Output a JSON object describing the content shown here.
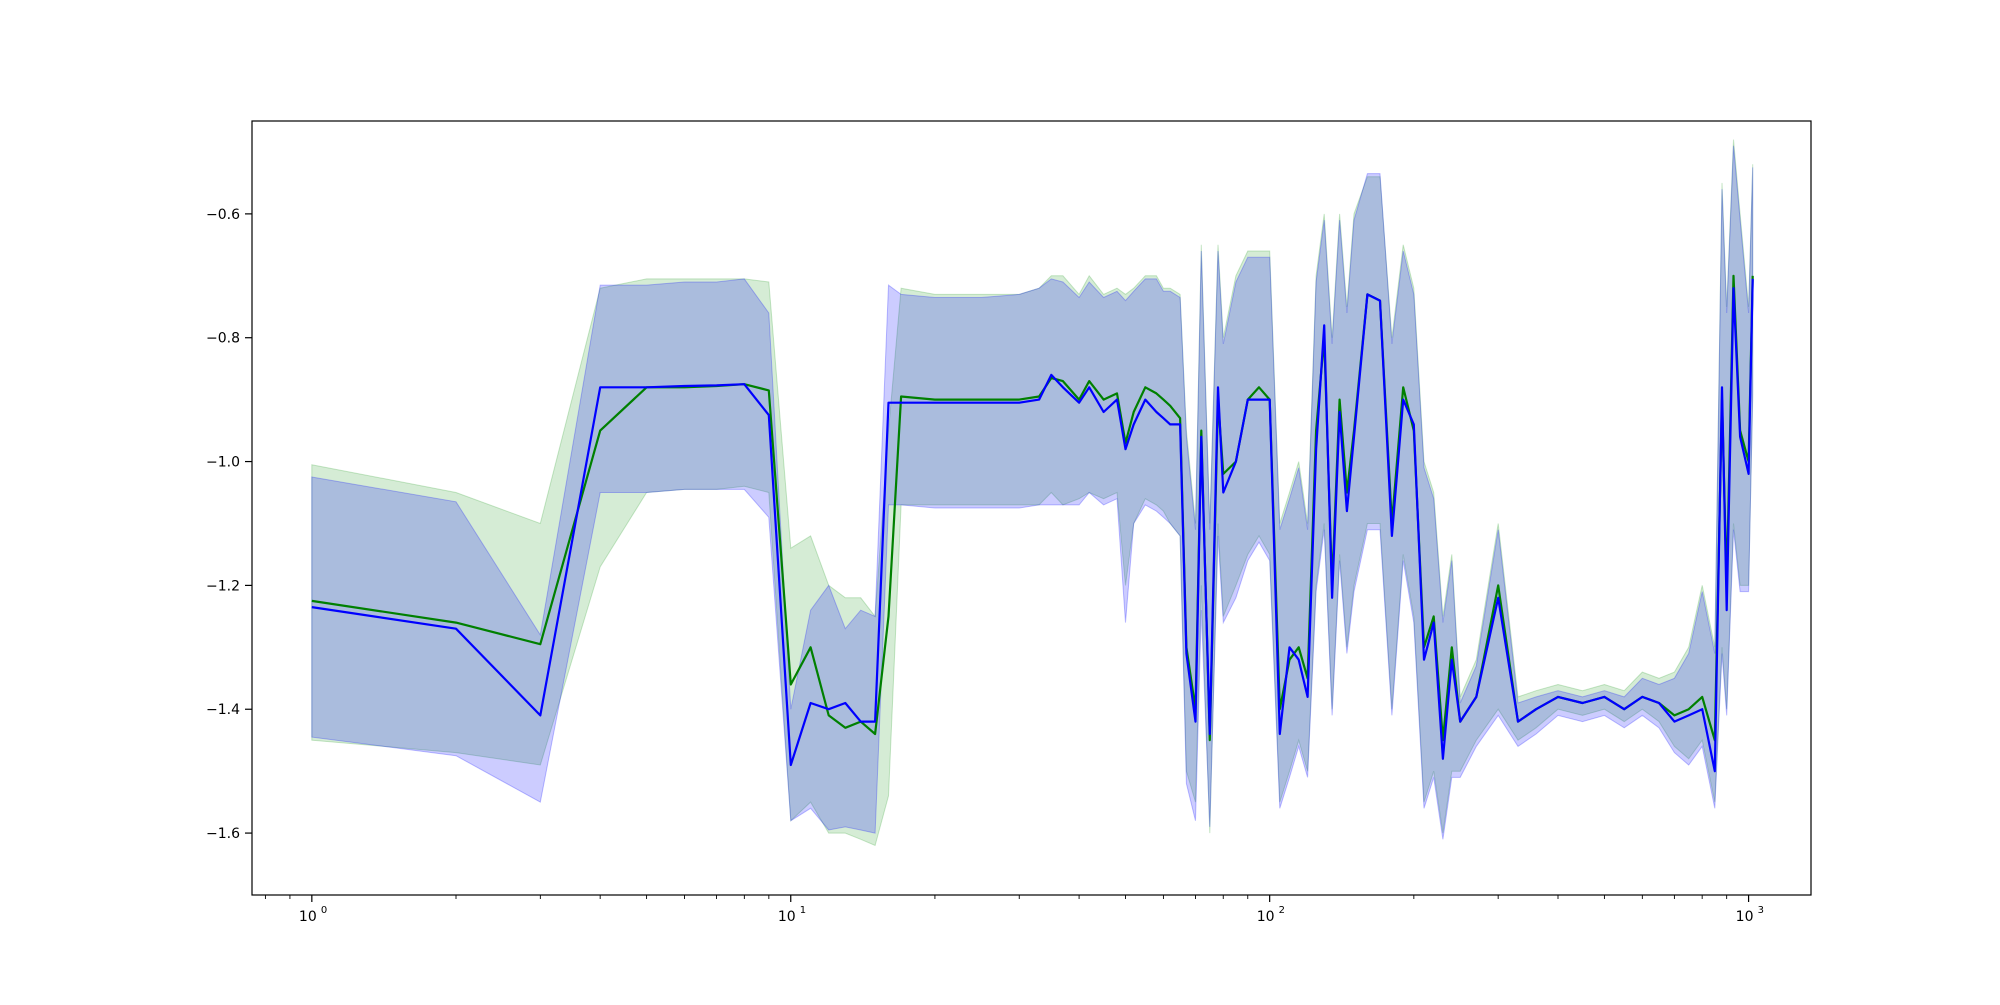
{
  "chart_data": {
    "type": "line",
    "title": "",
    "xlabel": "",
    "ylabel": "",
    "xscale": "log",
    "xlim": [
      0.75,
      1350
    ],
    "ylim": [
      -1.7,
      -0.45
    ],
    "grid": false,
    "legend": "none",
    "x_ticks": [
      {
        "value": 1,
        "base": "10",
        "exp": "0"
      },
      {
        "value": 10,
        "base": "10",
        "exp": "1"
      },
      {
        "value": 100,
        "base": "10",
        "exp": "2"
      },
      {
        "value": 1000,
        "base": "10",
        "exp": "3"
      }
    ],
    "y_ticks": [
      {
        "value": -1.6,
        "label": "−1.6"
      },
      {
        "value": -1.4,
        "label": "−1.4"
      },
      {
        "value": -1.2,
        "label": "−1.2"
      },
      {
        "value": -1.0,
        "label": "−1.0"
      },
      {
        "value": -0.8,
        "label": "−0.8"
      },
      {
        "value": -0.6,
        "label": "−0.6"
      }
    ],
    "series": [
      {
        "color": "#008000",
        "band_color": "#2ca02c",
        "x": [
          1,
          2,
          3,
          4,
          5,
          6,
          7,
          8,
          9,
          10,
          11,
          12,
          13,
          14,
          15,
          16,
          17,
          20,
          25,
          30,
          33,
          35,
          37,
          40,
          42,
          45,
          48,
          50,
          52,
          55,
          58,
          60,
          62,
          65,
          67,
          70,
          72,
          75,
          78,
          80,
          85,
          90,
          95,
          100,
          105,
          110,
          115,
          120,
          125,
          130,
          135,
          140,
          145,
          150,
          160,
          170,
          180,
          190,
          200,
          210,
          220,
          230,
          240,
          250,
          270,
          300,
          330,
          360,
          400,
          450,
          500,
          550,
          600,
          650,
          700,
          750,
          800,
          850,
          880,
          900,
          930,
          960,
          1000,
          1020
        ],
        "y": [
          -1.225,
          -1.26,
          -1.295,
          -0.95,
          -0.88,
          -0.88,
          -0.878,
          -0.875,
          -0.885,
          -1.36,
          -1.3,
          -1.41,
          -1.43,
          -1.42,
          -1.44,
          -1.25,
          -0.895,
          -0.9,
          -0.9,
          -0.9,
          -0.895,
          -0.865,
          -0.87,
          -0.9,
          -0.87,
          -0.9,
          -0.89,
          -0.97,
          -0.92,
          -0.88,
          -0.89,
          -0.9,
          -0.91,
          -0.93,
          -1.3,
          -1.4,
          -0.95,
          -1.45,
          -0.9,
          -1.02,
          -1.0,
          -0.9,
          -0.88,
          -0.9,
          -1.4,
          -1.32,
          -1.3,
          -1.35,
          -0.95,
          -0.8,
          -1.2,
          -0.9,
          -1.05,
          -0.95,
          -0.73,
          -0.74,
          -1.1,
          -0.88,
          -0.95,
          -1.3,
          -1.25,
          -1.45,
          -1.3,
          -1.42,
          -1.38,
          -1.2,
          -1.42,
          -1.4,
          -1.38,
          -1.39,
          -1.38,
          -1.4,
          -1.38,
          -1.39,
          -1.41,
          -1.4,
          -1.38,
          -1.45,
          -0.9,
          -1.2,
          -0.7,
          -0.95,
          -1.0,
          -0.7
        ],
        "lower": [
          -1.45,
          -1.47,
          -1.49,
          -1.17,
          -1.05,
          -1.045,
          -1.045,
          -1.04,
          -1.05,
          -1.58,
          -1.55,
          -1.6,
          -1.6,
          -1.61,
          -1.62,
          -1.54,
          -1.07,
          -1.07,
          -1.07,
          -1.07,
          -1.07,
          -1.05,
          -1.07,
          -1.06,
          -1.05,
          -1.06,
          -1.05,
          -1.2,
          -1.1,
          -1.06,
          -1.07,
          -1.08,
          -1.1,
          -1.12,
          -1.5,
          -1.55,
          -1.2,
          -1.6,
          -1.1,
          -1.25,
          -1.2,
          -1.15,
          -1.12,
          -1.15,
          -1.55,
          -1.5,
          -1.45,
          -1.5,
          -1.2,
          -1.1,
          -1.4,
          -1.15,
          -1.3,
          -1.2,
          -1.1,
          -1.1,
          -1.4,
          -1.15,
          -1.25,
          -1.55,
          -1.5,
          -1.6,
          -1.5,
          -1.5,
          -1.45,
          -1.4,
          -1.45,
          -1.43,
          -1.4,
          -1.41,
          -1.4,
          -1.42,
          -1.4,
          -1.42,
          -1.46,
          -1.48,
          -1.45,
          -1.55,
          -1.3,
          -1.4,
          -1.1,
          -1.2,
          -1.2,
          -0.9
        ],
        "upper": [
          -1.005,
          -1.05,
          -1.1,
          -0.72,
          -0.705,
          -0.705,
          -0.705,
          -0.705,
          -0.71,
          -1.14,
          -1.12,
          -1.2,
          -1.22,
          -1.22,
          -1.25,
          -0.95,
          -0.72,
          -0.73,
          -0.73,
          -0.73,
          -0.72,
          -0.7,
          -0.7,
          -0.73,
          -0.7,
          -0.73,
          -0.72,
          -0.73,
          -0.72,
          -0.7,
          -0.7,
          -0.72,
          -0.72,
          -0.73,
          -0.95,
          -1.1,
          -0.65,
          -1.1,
          -0.65,
          -0.8,
          -0.7,
          -0.66,
          -0.66,
          -0.66,
          -1.1,
          -1.05,
          -1.0,
          -1.1,
          -0.7,
          -0.6,
          -0.8,
          -0.6,
          -0.75,
          -0.6,
          -0.54,
          -0.54,
          -0.8,
          -0.65,
          -0.72,
          -1.0,
          -1.05,
          -1.25,
          -1.15,
          -1.38,
          -1.32,
          -1.1,
          -1.38,
          -1.37,
          -1.36,
          -1.37,
          -1.36,
          -1.37,
          -1.34,
          -1.35,
          -1.34,
          -1.3,
          -1.2,
          -1.3,
          -0.55,
          -0.75,
          -0.48,
          -0.6,
          -0.75,
          -0.52
        ]
      },
      {
        "color": "#0000ff",
        "band_color": "#0000ff",
        "x": [
          1,
          2,
          3,
          4,
          5,
          6,
          7,
          8,
          9,
          10,
          11,
          12,
          13,
          14,
          15,
          16,
          17,
          20,
          25,
          30,
          33,
          35,
          37,
          40,
          42,
          45,
          48,
          50,
          52,
          55,
          58,
          60,
          62,
          65,
          67,
          70,
          72,
          75,
          78,
          80,
          85,
          90,
          95,
          100,
          105,
          110,
          115,
          120,
          125,
          130,
          135,
          140,
          145,
          150,
          160,
          170,
          180,
          190,
          200,
          210,
          220,
          230,
          240,
          250,
          270,
          300,
          330,
          360,
          400,
          450,
          500,
          550,
          600,
          650,
          700,
          750,
          800,
          850,
          880,
          900,
          930,
          960,
          1000,
          1020
        ],
        "y": [
          -1.235,
          -1.27,
          -1.41,
          -0.88,
          -0.88,
          -0.878,
          -0.877,
          -0.875,
          -0.925,
          -1.49,
          -1.39,
          -1.4,
          -1.39,
          -1.42,
          -1.42,
          -0.905,
          -0.905,
          -0.905,
          -0.905,
          -0.905,
          -0.9,
          -0.86,
          -0.88,
          -0.905,
          -0.88,
          -0.92,
          -0.9,
          -0.98,
          -0.94,
          -0.9,
          -0.92,
          -0.93,
          -0.94,
          -0.94,
          -1.31,
          -1.42,
          -0.96,
          -1.44,
          -0.88,
          -1.05,
          -1.0,
          -0.9,
          -0.9,
          -0.9,
          -1.44,
          -1.3,
          -1.32,
          -1.38,
          -0.98,
          -0.78,
          -1.22,
          -0.92,
          -1.08,
          -0.96,
          -0.73,
          -0.74,
          -1.12,
          -0.9,
          -0.94,
          -1.32,
          -1.26,
          -1.48,
          -1.32,
          -1.42,
          -1.38,
          -1.22,
          -1.42,
          -1.4,
          -1.38,
          -1.39,
          -1.38,
          -1.4,
          -1.38,
          -1.39,
          -1.42,
          -1.41,
          -1.4,
          -1.5,
          -0.88,
          -1.24,
          -0.72,
          -0.96,
          -1.02,
          -0.705
        ],
        "lower": [
          -1.445,
          -1.475,
          -1.55,
          -1.05,
          -1.05,
          -1.045,
          -1.045,
          -1.045,
          -1.09,
          -1.58,
          -1.56,
          -1.595,
          -1.59,
          -1.595,
          -1.6,
          -1.07,
          -1.07,
          -1.075,
          -1.075,
          -1.075,
          -1.07,
          -1.07,
          -1.07,
          -1.07,
          -1.05,
          -1.07,
          -1.06,
          -1.26,
          -1.1,
          -1.07,
          -1.08,
          -1.09,
          -1.1,
          -1.12,
          -1.52,
          -1.58,
          -1.24,
          -1.59,
          -1.12,
          -1.26,
          -1.22,
          -1.16,
          -1.13,
          -1.16,
          -1.56,
          -1.51,
          -1.46,
          -1.51,
          -1.21,
          -1.11,
          -1.41,
          -1.16,
          -1.31,
          -1.21,
          -1.11,
          -1.11,
          -1.41,
          -1.16,
          -1.26,
          -1.56,
          -1.51,
          -1.61,
          -1.51,
          -1.51,
          -1.46,
          -1.41,
          -1.46,
          -1.44,
          -1.41,
          -1.42,
          -1.41,
          -1.43,
          -1.41,
          -1.43,
          -1.47,
          -1.49,
          -1.46,
          -1.56,
          -1.31,
          -1.41,
          -1.11,
          -1.21,
          -1.21,
          -0.89
        ],
        "upper": [
          -1.025,
          -1.065,
          -1.28,
          -0.715,
          -0.715,
          -0.71,
          -0.71,
          -0.705,
          -0.76,
          -1.4,
          -1.24,
          -1.2,
          -1.27,
          -1.24,
          -1.25,
          -0.715,
          -0.73,
          -0.735,
          -0.735,
          -0.73,
          -0.72,
          -0.705,
          -0.71,
          -0.735,
          -0.71,
          -0.735,
          -0.725,
          -0.74,
          -0.725,
          -0.705,
          -0.705,
          -0.725,
          -0.725,
          -0.735,
          -0.96,
          -1.11,
          -0.66,
          -1.11,
          -0.66,
          -0.81,
          -0.71,
          -0.67,
          -0.67,
          -0.67,
          -1.11,
          -1.06,
          -1.01,
          -1.11,
          -0.71,
          -0.61,
          -0.81,
          -0.61,
          -0.76,
          -0.61,
          -0.535,
          -0.535,
          -0.81,
          -0.66,
          -0.73,
          -1.01,
          -1.06,
          -1.26,
          -1.16,
          -1.39,
          -1.33,
          -1.11,
          -1.39,
          -1.38,
          -1.37,
          -1.38,
          -1.37,
          -1.38,
          -1.35,
          -1.36,
          -1.35,
          -1.31,
          -1.21,
          -1.31,
          -0.56,
          -0.76,
          -0.49,
          -0.61,
          -0.76,
          -0.525
        ]
      }
    ]
  }
}
